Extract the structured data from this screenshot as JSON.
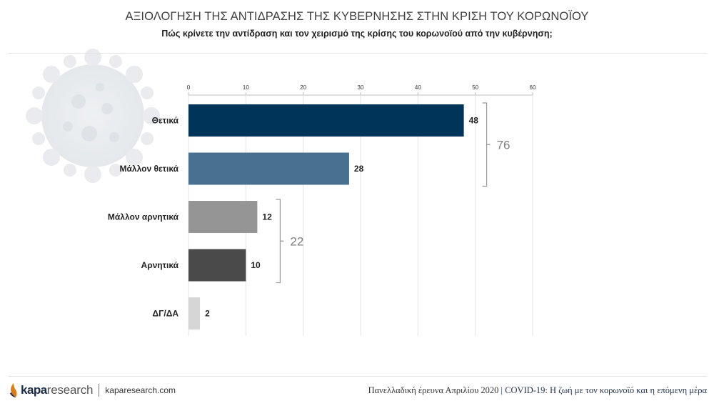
{
  "header": {
    "title": "ΑΞΙΟΛΟΓΗΣΗ ΤΗΣ ΑΝΤΙΔΡΑΣΗΣ ΤΗΣ ΚΥΒΕΡΝΗΣΗΣ ΣΤΗΝ ΚΡΙΣΗ ΤΟΥ ΚΟΡΩΝΟΪΟΥ",
    "subtitle": "Πώς κρίνετε την αντίδραση και τον χειρισμό της κρίσης του κορωνοϊού από την κυβέρνηση;"
  },
  "chart_data": {
    "type": "bar",
    "orientation": "horizontal",
    "categories": [
      "Θετικά",
      "Μάλλον θετικά",
      "Μάλλον αρνητικά",
      "Αρνητικά",
      "ΔΓ/ΔΑ"
    ],
    "values": [
      48,
      28,
      12,
      10,
      2
    ],
    "value_labels": [
      "48",
      "28",
      "12",
      "10",
      "2"
    ],
    "colors": [
      "#003459",
      "#4a7090",
      "#959595",
      "#4a4a4a",
      "#d6d6d6"
    ],
    "xlim": [
      0,
      60
    ],
    "xticks": [
      "0",
      "10",
      "20",
      "30",
      "40",
      "50",
      "60"
    ],
    "xtick_values": [
      0,
      10,
      20,
      30,
      40,
      50,
      60
    ],
    "axis_position": "top",
    "grid": true,
    "groups": [
      {
        "label": "76",
        "from": 0,
        "to": 1
      },
      {
        "label": "22",
        "from": 2,
        "to": 3
      }
    ]
  },
  "footer": {
    "logo_kapa": "kapa",
    "logo_research": "research",
    "site": "kaparesearch.com",
    "survey": "Πανελλαδική έρευνα Απριλίου 2020",
    "separator": "|",
    "topic": "COVID-19: Η ζωή με τον κορωνοϊό και η επόμενη μέρα"
  }
}
